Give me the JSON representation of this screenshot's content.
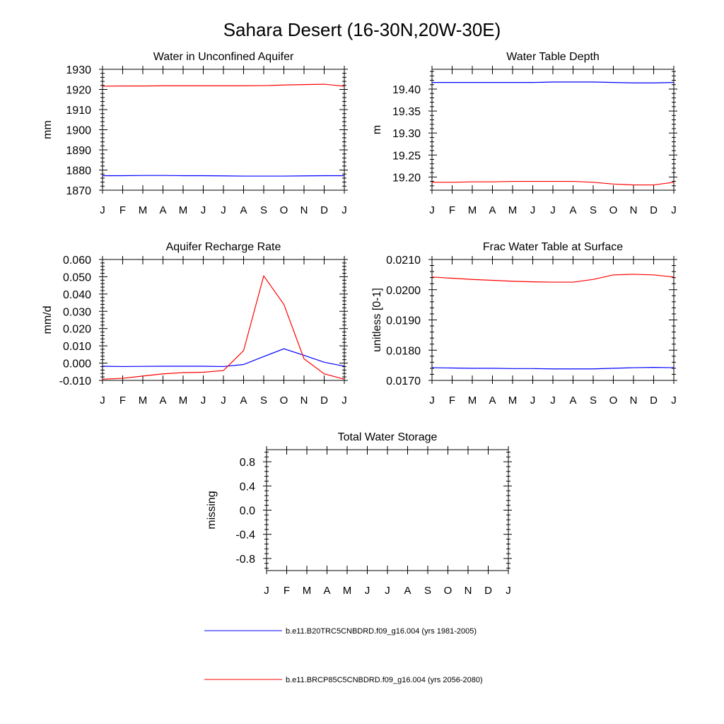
{
  "figure": {
    "title": "Sahara Desert (16-30N,20W-30E)"
  },
  "colors": {
    "series_1": "#0000ff",
    "series_2": "#ff0000",
    "axis": "#000000"
  },
  "legend": [
    {
      "label": "b.e11.B20TRC5CNBDRD.f09_g16.004 (yrs 1981-2005)",
      "color": "#0000ff"
    },
    {
      "label": "b.e11.BRCP85C5CNBDRD.f09_g16.004 (yrs 2056-2080)",
      "color": "#ff0000"
    }
  ],
  "chart_data": [
    {
      "type": "line",
      "title": "Water in Unconfined Aquifer",
      "xlabel": "",
      "ylabel": "mm",
      "categories": [
        "J",
        "F",
        "M",
        "A",
        "M",
        "J",
        "J",
        "A",
        "S",
        "O",
        "N",
        "D",
        "J"
      ],
      "ylim": [
        1870,
        1930
      ],
      "yticks": [
        1870,
        1880,
        1890,
        1900,
        1910,
        1920,
        1930
      ],
      "ytick_labels": [
        "1870",
        "1880",
        "1890",
        "1900",
        "1910",
        "1920",
        "1930"
      ],
      "series": [
        {
          "name": "b.e11.B20TRC5CNBDRD.f09_g16.004 (yrs 1981-2005)",
          "color": "#0000ff",
          "values": [
            1877.2,
            1877.2,
            1877.3,
            1877.3,
            1877.2,
            1877.2,
            1877.1,
            1877.0,
            1877.0,
            1877.0,
            1877.1,
            1877.2,
            1877.2
          ]
        },
        {
          "name": "b.e11.BRCP85C5CNBDRD.f09_g16.004 (yrs 2056-2080)",
          "color": "#ff0000",
          "values": [
            1921.6,
            1921.7,
            1921.7,
            1921.8,
            1921.8,
            1921.8,
            1921.8,
            1921.8,
            1921.9,
            1922.2,
            1922.4,
            1922.6,
            1921.6
          ]
        }
      ]
    },
    {
      "type": "line",
      "title": "Water Table Depth",
      "xlabel": "",
      "ylabel": "m",
      "categories": [
        "J",
        "F",
        "M",
        "A",
        "M",
        "J",
        "J",
        "A",
        "S",
        "O",
        "N",
        "D",
        "J"
      ],
      "ylim": [
        19.17,
        19.445
      ],
      "yticks": [
        19.2,
        19.25,
        19.3,
        19.35,
        19.4
      ],
      "ytick_labels": [
        "19.20",
        "19.25",
        "19.30",
        "19.35",
        "19.40"
      ],
      "series": [
        {
          "name": "b.e11.B20TRC5CNBDRD.f09_g16.004 (yrs 1981-2005)",
          "color": "#0000ff",
          "values": [
            19.415,
            19.415,
            19.415,
            19.415,
            19.415,
            19.415,
            19.416,
            19.416,
            19.416,
            19.415,
            19.414,
            19.414,
            19.415
          ]
        },
        {
          "name": "b.e11.BRCP85C5CNBDRD.f09_g16.004 (yrs 2056-2080)",
          "color": "#ff0000",
          "values": [
            19.188,
            19.188,
            19.189,
            19.189,
            19.19,
            19.19,
            19.19,
            19.19,
            19.188,
            19.184,
            19.182,
            19.182,
            19.188
          ]
        }
      ]
    },
    {
      "type": "line",
      "title": "Aquifer Recharge Rate",
      "xlabel": "",
      "ylabel": "mm/d",
      "categories": [
        "J",
        "F",
        "M",
        "A",
        "M",
        "J",
        "J",
        "A",
        "S",
        "O",
        "N",
        "D",
        "J"
      ],
      "ylim": [
        -0.01,
        0.06
      ],
      "yticks": [
        -0.01,
        0.0,
        0.01,
        0.02,
        0.03,
        0.04,
        0.05,
        0.06
      ],
      "ytick_labels": [
        "-0.010",
        "0.000",
        "0.010",
        "0.020",
        "0.030",
        "0.040",
        "0.050",
        "0.060"
      ],
      "series": [
        {
          "name": "b.e11.B20TRC5CNBDRD.f09_g16.004 (yrs 1981-2005)",
          "color": "#0000ff",
          "values": [
            -0.0018,
            -0.002,
            -0.0019,
            -0.0018,
            -0.0018,
            -0.0018,
            -0.002,
            -0.0008,
            0.0038,
            0.0083,
            0.0045,
            0.0005,
            -0.0018
          ]
        },
        {
          "name": "b.e11.BRCP85C5CNBDRD.f09_g16.004 (yrs 2056-2080)",
          "color": "#ff0000",
          "values": [
            -0.0093,
            -0.0088,
            -0.0075,
            -0.0062,
            -0.0055,
            -0.0053,
            -0.0043,
            0.0072,
            0.0505,
            0.034,
            0.0025,
            -0.0062,
            -0.0093
          ]
        }
      ]
    },
    {
      "type": "line",
      "title": "Frac Water Table at Surface",
      "xlabel": "",
      "ylabel": "unitless [0-1]",
      "categories": [
        "J",
        "F",
        "M",
        "A",
        "M",
        "J",
        "J",
        "A",
        "S",
        "O",
        "N",
        "D",
        "J"
      ],
      "ylim": [
        0.017,
        0.021
      ],
      "yticks": [
        0.017,
        0.018,
        0.019,
        0.02,
        0.021
      ],
      "ytick_labels": [
        "0.0170",
        "0.0180",
        "0.0190",
        "0.0200",
        "0.0210"
      ],
      "series": [
        {
          "name": "b.e11.B20TRC5CNBDRD.f09_g16.004 (yrs 1981-2005)",
          "color": "#0000ff",
          "values": [
            0.01742,
            0.01741,
            0.0174,
            0.0174,
            0.01739,
            0.01739,
            0.01738,
            0.01738,
            0.01738,
            0.0174,
            0.01742,
            0.01743,
            0.01742
          ]
        },
        {
          "name": "b.e11.BRCP85C5CNBDRD.f09_g16.004 (yrs 2056-2080)",
          "color": "#ff0000",
          "values": [
            0.02042,
            0.02038,
            0.02034,
            0.02031,
            0.02028,
            0.02026,
            0.02025,
            0.02025,
            0.02034,
            0.02049,
            0.02051,
            0.02049,
            0.02042
          ]
        }
      ]
    },
    {
      "type": "line",
      "title": "Total Water Storage",
      "xlabel": "",
      "ylabel": "missing",
      "categories": [
        "J",
        "F",
        "M",
        "A",
        "M",
        "J",
        "J",
        "A",
        "S",
        "O",
        "N",
        "D",
        "J"
      ],
      "ylim": [
        -1.0,
        1.0
      ],
      "yticks": [
        -0.8,
        -0.4,
        0.0,
        0.4,
        0.8
      ],
      "ytick_labels": [
        "-0.8",
        "-0.4",
        "0.0",
        "0.4",
        "0.8"
      ],
      "series": []
    }
  ]
}
